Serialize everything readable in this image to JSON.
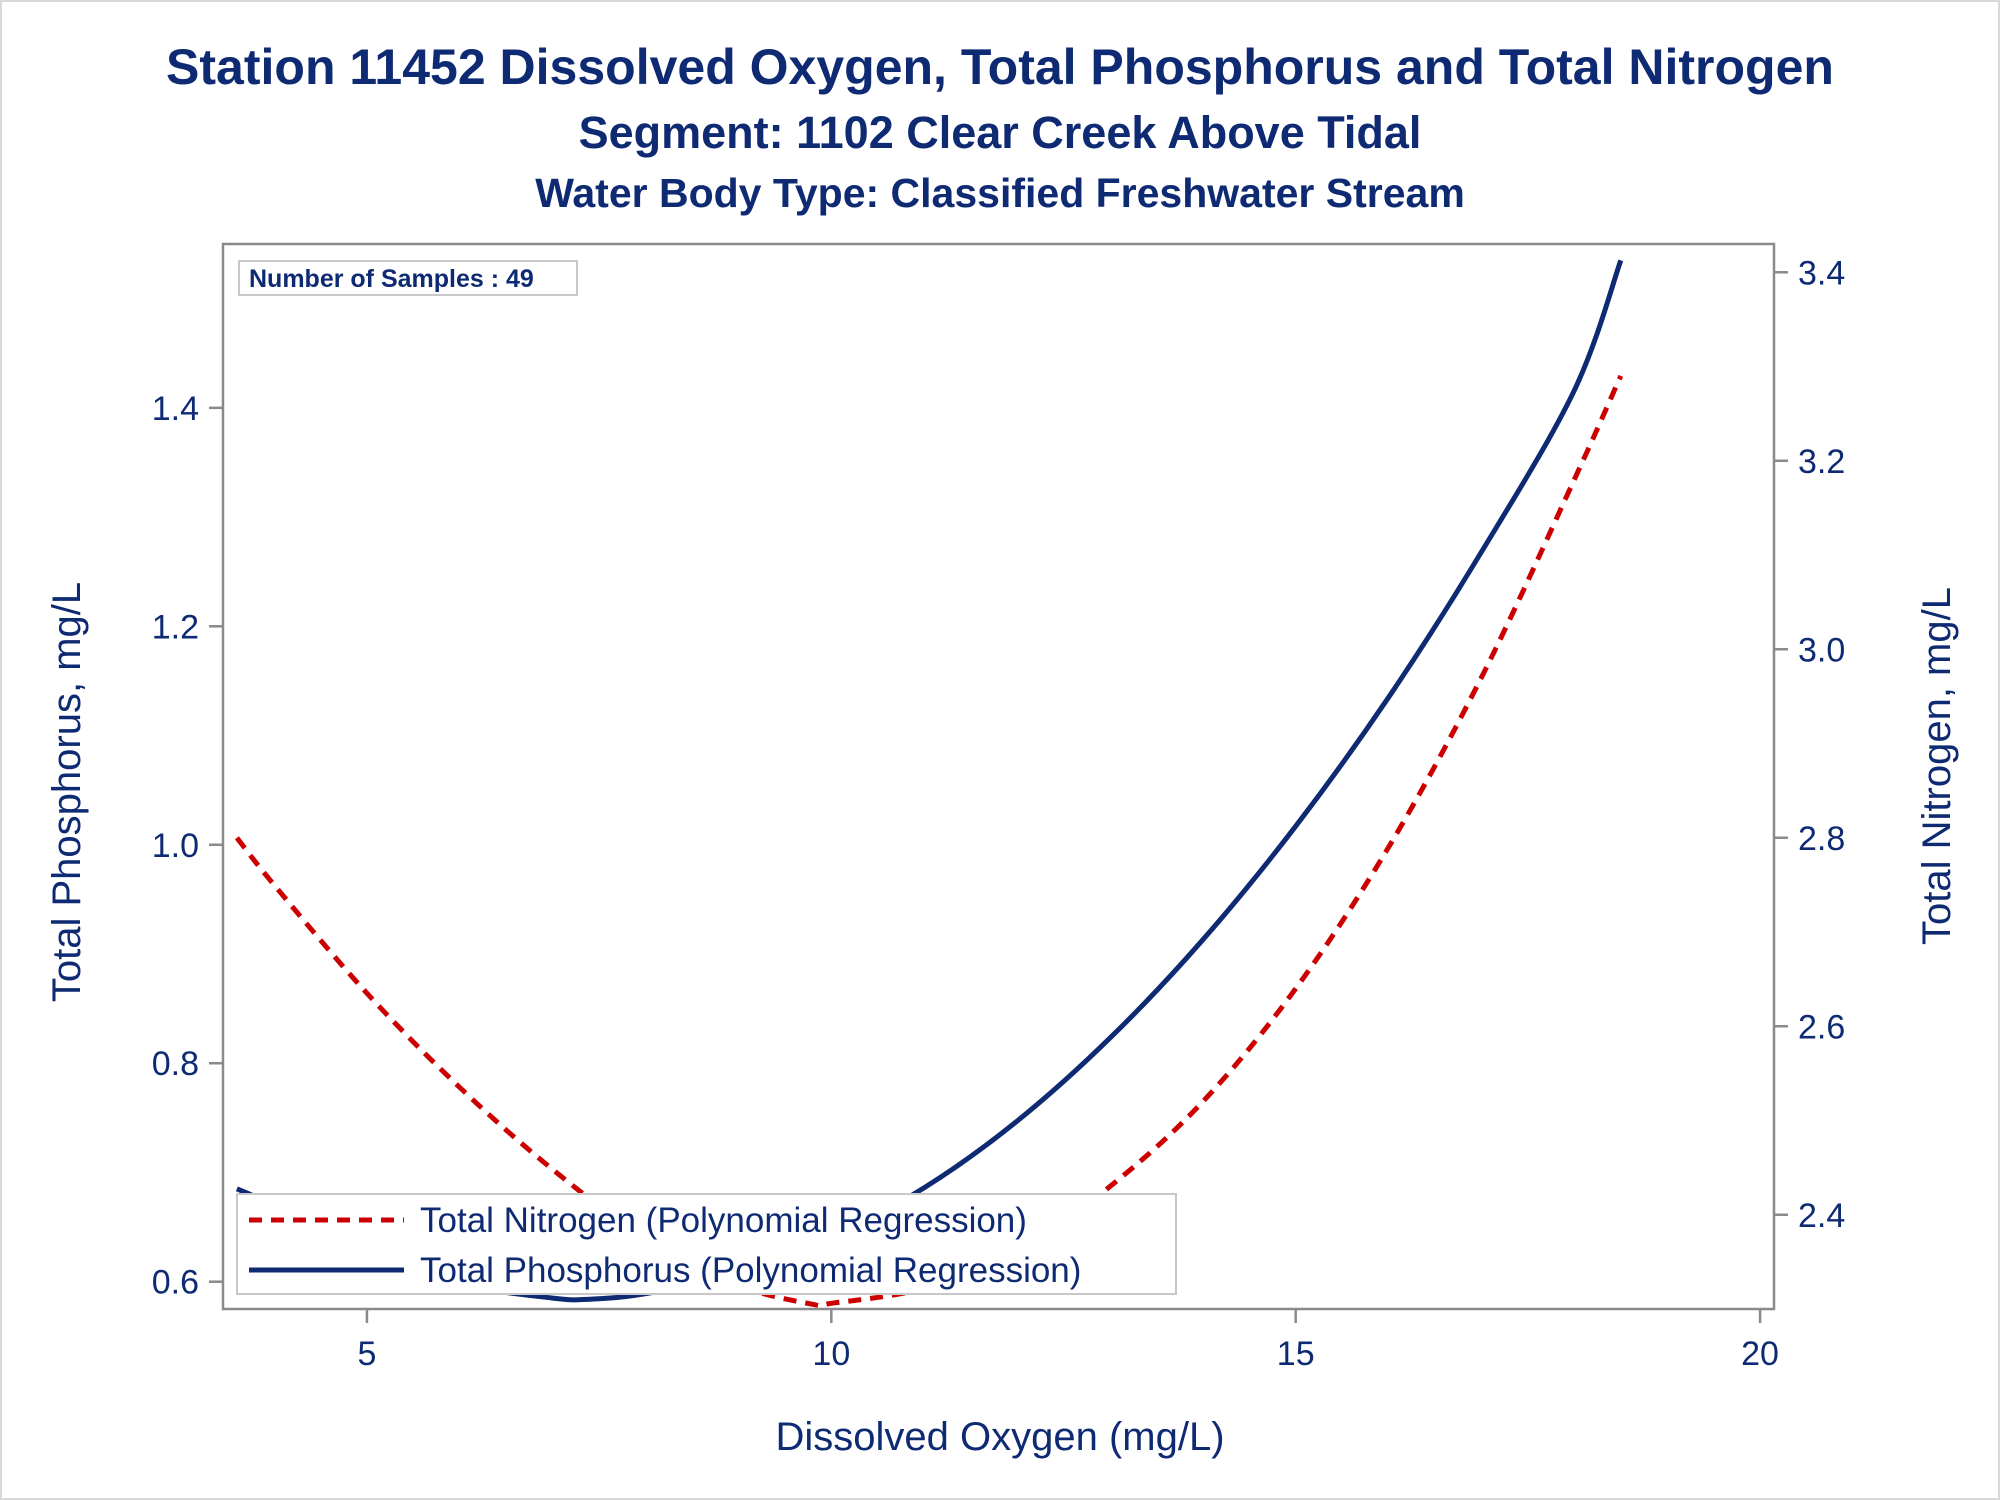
{
  "chart_data": {
    "type": "line",
    "title": "Station 11452  Dissolved Oxygen, Total Phosphorus and Total Nitrogen",
    "subtitle": "Segment: 1102  Clear Creek Above Tidal",
    "subtitle2": "Water Body Type: Classified Freshwater Stream",
    "xlabel": "Dissolved Oxygen (mg/L)",
    "ylabel_left": "Total Phosphorus, mg/L",
    "ylabel_right": "Total Nitrogen, mg/L",
    "x_ticks": [
      "5",
      "10",
      "15",
      "20"
    ],
    "y_left_ticks": [
      "0.6",
      "0.8",
      "1.0",
      "1.2",
      "1.4"
    ],
    "y_right_ticks": [
      "2.4",
      "2.6",
      "2.8",
      "3.0",
      "3.2",
      "3.4"
    ],
    "xlim": [
      3.45,
      20.15
    ],
    "ylim_left": [
      0.575,
      1.55
    ],
    "ylim_right": [
      2.3,
      3.43
    ],
    "annotation": "Number of Samples : 49",
    "legend_position": "bottom-left",
    "grid": false,
    "series": [
      {
        "name": "Total Nitrogen (Polynomial Regression)",
        "axis": "right",
        "style": "dashed",
        "color": "#cc0000",
        "x": [
          3.6,
          4,
          5,
          6,
          7,
          8,
          9,
          9.8,
          10,
          11,
          12,
          13,
          14,
          15,
          16,
          17,
          18,
          18.5
        ],
        "y": [
          2.8,
          2.75,
          2.635,
          2.535,
          2.448,
          2.375,
          2.325,
          2.305,
          2.306,
          2.322,
          2.362,
          2.43,
          2.52,
          2.64,
          2.79,
          2.97,
          3.18,
          3.29
        ]
      },
      {
        "name": "Total Phosphorus (Polynomial Regression)",
        "axis": "left",
        "style": "solid",
        "color": "#0e2a72",
        "x": [
          3.6,
          4,
          5,
          6,
          7,
          7.4,
          8,
          9,
          10,
          11,
          12,
          13,
          14,
          15,
          16,
          17,
          18,
          18.5
        ],
        "y": [
          0.685,
          0.67,
          0.628,
          0.598,
          0.585,
          0.584,
          0.589,
          0.607,
          0.64,
          0.686,
          0.747,
          0.823,
          0.913,
          1.017,
          1.135,
          1.268,
          1.416,
          1.535
        ]
      }
    ]
  }
}
